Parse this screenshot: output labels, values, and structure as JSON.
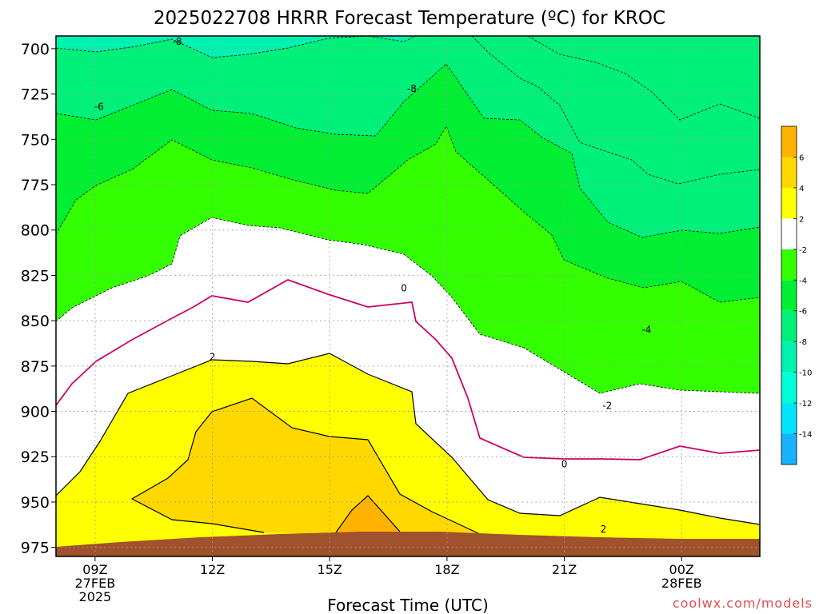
{
  "chart_data": {
    "type": "heatmap",
    "title": "2025022708 HRRR Forecast Temperature (ºC) for KROC",
    "xlabel": "Forecast Time (UTC)",
    "ylabel": "",
    "credit": "coolwx.com/models",
    "x_range_hours_utc": [
      8,
      26
    ],
    "y_range_mb": [
      980,
      693
    ],
    "y_reversed": true,
    "grid": true,
    "y_ticks": [
      700,
      725,
      750,
      775,
      800,
      825,
      850,
      875,
      900,
      925,
      950,
      975
    ],
    "x_ticks": [
      {
        "hour": 9,
        "lines": [
          "09Z",
          "27FEB",
          "2025"
        ]
      },
      {
        "hour": 12,
        "lines": [
          "12Z"
        ]
      },
      {
        "hour": 15,
        "lines": [
          "15Z"
        ]
      },
      {
        "hour": 18,
        "lines": [
          "18Z"
        ]
      },
      {
        "hour": 21,
        "lines": [
          "21Z"
        ]
      },
      {
        "hour": 24,
        "lines": [
          "00Z",
          "28FEB"
        ]
      }
    ],
    "colorbar": {
      "levels": [
        6,
        4,
        2,
        -2,
        -4,
        -6,
        -8,
        -10,
        -12,
        -14
      ],
      "bands": [
        {
          "range": "above 6",
          "color": "#ffb300"
        },
        {
          "range": "4 to 6",
          "color": "#ffd800"
        },
        {
          "range": "2 to 4",
          "color": "#ffff00"
        },
        {
          "range": "-2 to 2",
          "color": "#ffffff"
        },
        {
          "range": "-4 to -2",
          "color": "#33ff00"
        },
        {
          "range": "-6 to -4",
          "color": "#00ef33"
        },
        {
          "range": "-8 to -6",
          "color": "#00f07a"
        },
        {
          "range": "-10 to -8",
          "color": "#00f2b0"
        },
        {
          "range": "-12 to -10",
          "color": "#00ffd8"
        },
        {
          "range": "-14 to -12",
          "color": "#00e5ff"
        },
        {
          "range": "below -14",
          "color": "#19b2ff"
        }
      ]
    },
    "colors": {
      "zero_isotherm": "#cc0066",
      "ground": "#a0522d",
      "credit": "#e05050"
    },
    "contour_labels": [
      {
        "text": "-8",
        "hour": 11.1,
        "mb": 696
      },
      {
        "text": "-8",
        "hour": 17.1,
        "mb": 722
      },
      {
        "text": "-6",
        "hour": 9.1,
        "mb": 732
      },
      {
        "text": "0",
        "hour": 16.9,
        "mb": 832
      },
      {
        "text": "-4",
        "hour": 23.1,
        "mb": 855
      },
      {
        "text": "2",
        "hour": 12.0,
        "mb": 870
      },
      {
        "text": "-2",
        "hour": 22.1,
        "mb": 897
      },
      {
        "text": "0",
        "hour": 21.0,
        "mb": 929
      },
      {
        "text": "2",
        "hour": 22.0,
        "mb": 965
      }
    ]
  }
}
